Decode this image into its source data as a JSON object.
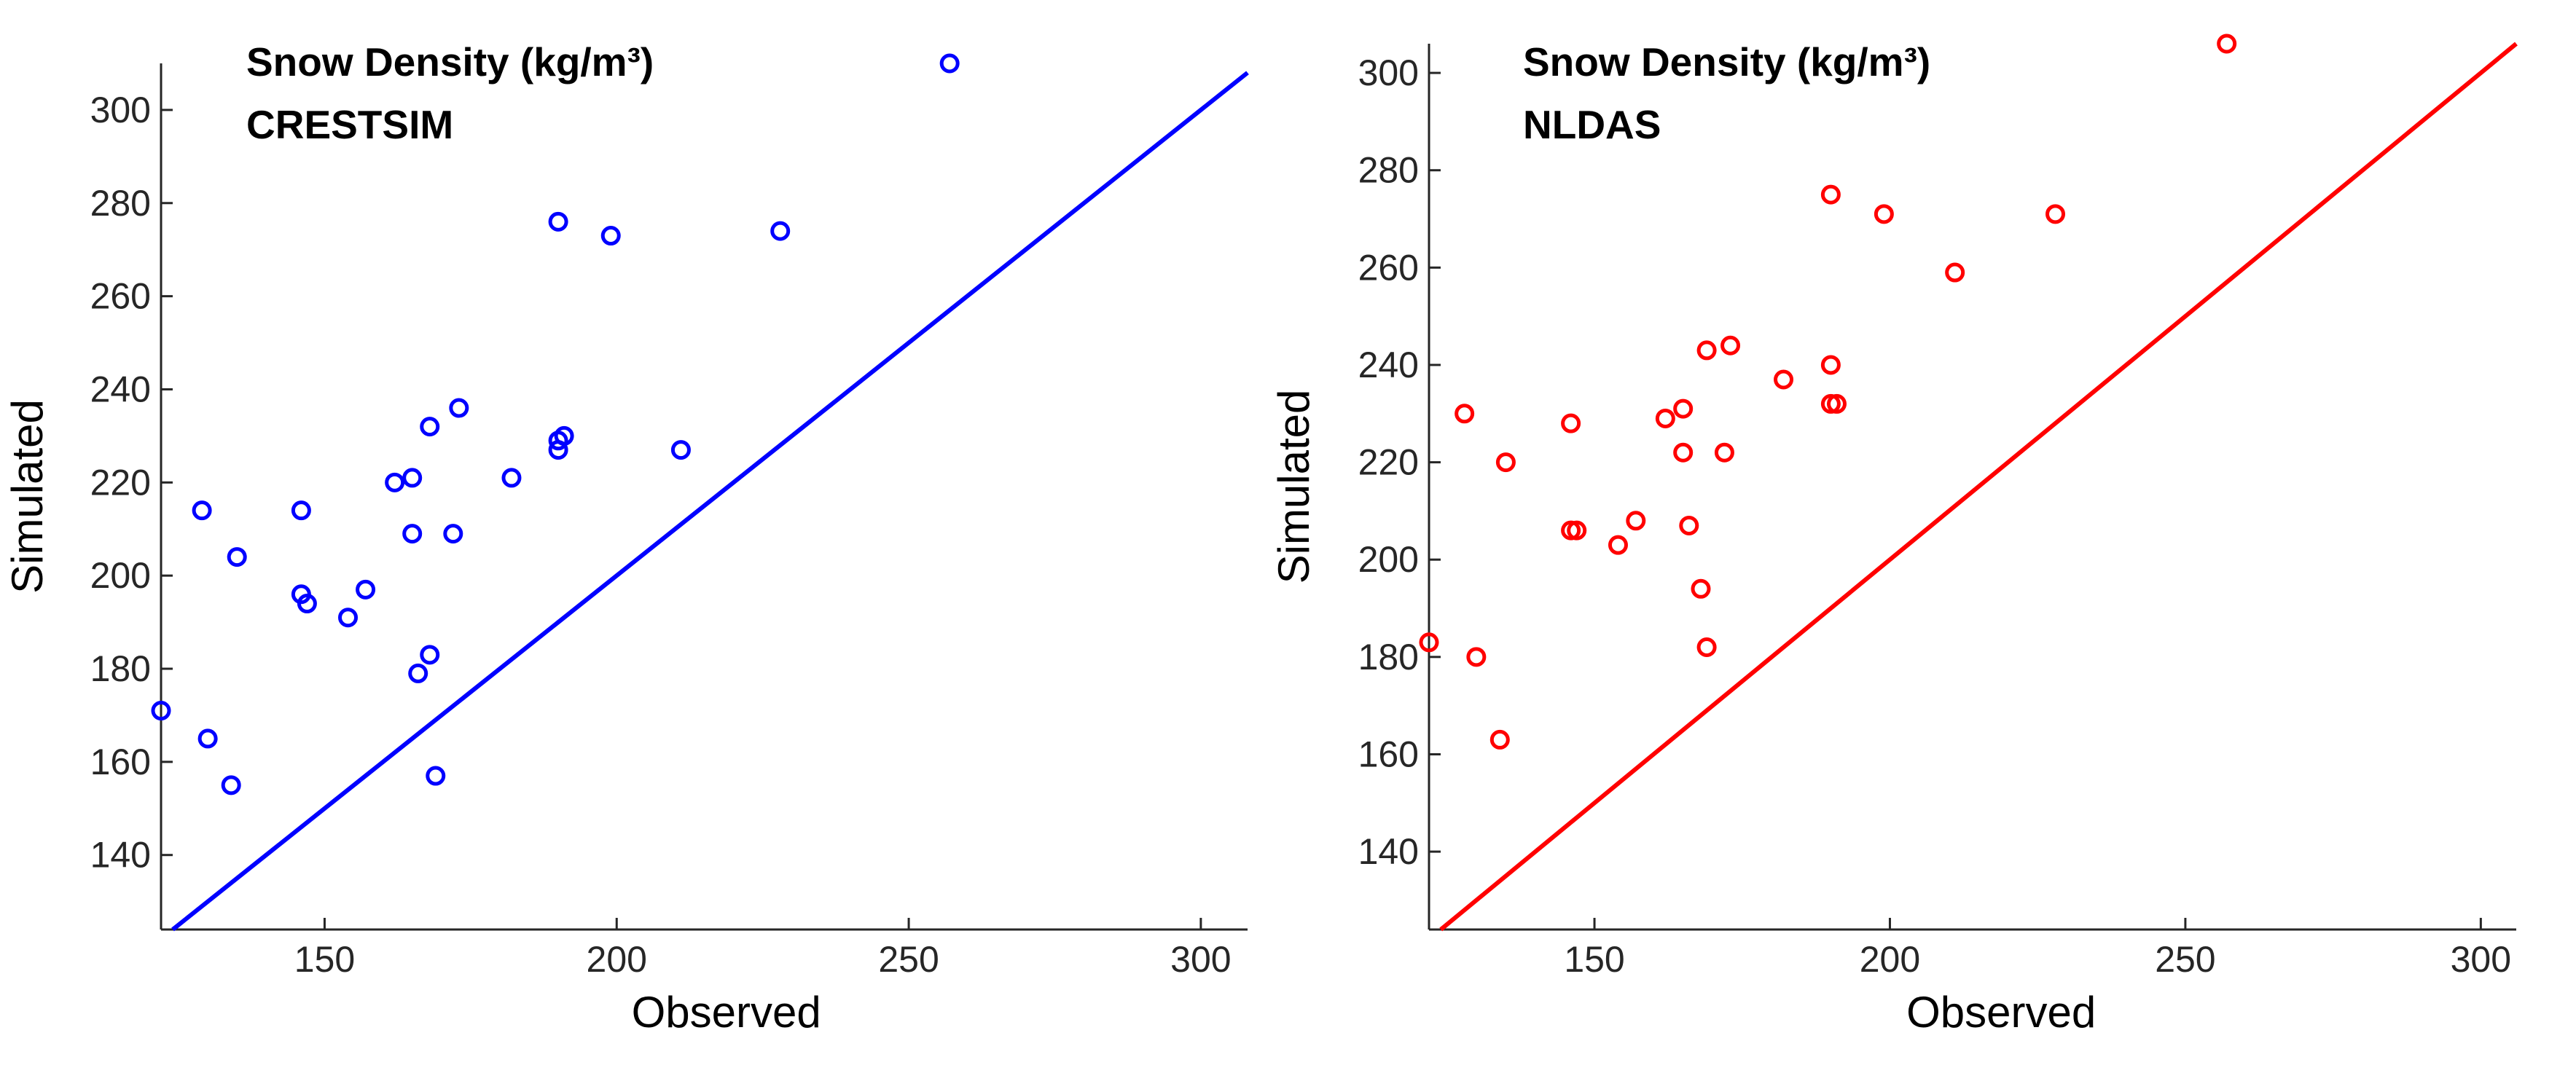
{
  "chart_data": [
    {
      "type": "scatter",
      "title": "Snow Density (kg/m³)",
      "subtitle": "CRESTSIM",
      "xlabel": "Observed",
      "ylabel": "Simulated",
      "xlim": [
        122,
        308
      ],
      "ylim": [
        124,
        310
      ],
      "xticks": [
        150,
        200,
        250,
        300
      ],
      "yticks": [
        140,
        160,
        180,
        200,
        220,
        240,
        260,
        280,
        300
      ],
      "color": "#0000ff",
      "reference_line": "1:1",
      "points": [
        {
          "x": 122,
          "y": 171
        },
        {
          "x": 129,
          "y": 214
        },
        {
          "x": 130,
          "y": 165
        },
        {
          "x": 134,
          "y": 155
        },
        {
          "x": 135,
          "y": 204
        },
        {
          "x": 146,
          "y": 196
        },
        {
          "x": 146,
          "y": 214
        },
        {
          "x": 147,
          "y": 194
        },
        {
          "x": 154,
          "y": 191
        },
        {
          "x": 157,
          "y": 197
        },
        {
          "x": 162,
          "y": 220
        },
        {
          "x": 165,
          "y": 221
        },
        {
          "x": 165,
          "y": 209
        },
        {
          "x": 166,
          "y": 179
        },
        {
          "x": 168,
          "y": 183
        },
        {
          "x": 168,
          "y": 232
        },
        {
          "x": 169,
          "y": 157
        },
        {
          "x": 172,
          "y": 209
        },
        {
          "x": 173,
          "y": 236
        },
        {
          "x": 182,
          "y": 221
        },
        {
          "x": 190,
          "y": 276
        },
        {
          "x": 190,
          "y": 229
        },
        {
          "x": 190,
          "y": 227
        },
        {
          "x": 191,
          "y": 230
        },
        {
          "x": 199,
          "y": 273
        },
        {
          "x": 211,
          "y": 227
        },
        {
          "x": 228,
          "y": 274
        },
        {
          "x": 257,
          "y": 310
        }
      ]
    },
    {
      "type": "scatter",
      "title": "Snow Density (kg/m³)",
      "subtitle": "NLDAS",
      "xlabel": "Observed",
      "ylabel": "Simulated",
      "xlim": [
        122,
        306
      ],
      "ylim": [
        124,
        306
      ],
      "xticks": [
        150,
        200,
        250,
        300
      ],
      "yticks": [
        140,
        160,
        180,
        200,
        220,
        240,
        260,
        280,
        300
      ],
      "color": "#ff0000",
      "reference_line": "1:1",
      "points": [
        {
          "x": 122,
          "y": 183
        },
        {
          "x": 128,
          "y": 230
        },
        {
          "x": 130,
          "y": 180
        },
        {
          "x": 134,
          "y": 163
        },
        {
          "x": 135,
          "y": 220
        },
        {
          "x": 146,
          "y": 228
        },
        {
          "x": 146,
          "y": 206
        },
        {
          "x": 147,
          "y": 206
        },
        {
          "x": 154,
          "y": 203
        },
        {
          "x": 157,
          "y": 208
        },
        {
          "x": 162,
          "y": 229
        },
        {
          "x": 165,
          "y": 231
        },
        {
          "x": 165,
          "y": 222
        },
        {
          "x": 166,
          "y": 207
        },
        {
          "x": 168,
          "y": 194
        },
        {
          "x": 169,
          "y": 243
        },
        {
          "x": 169,
          "y": 182
        },
        {
          "x": 172,
          "y": 222
        },
        {
          "x": 173,
          "y": 244
        },
        {
          "x": 182,
          "y": 237
        },
        {
          "x": 190,
          "y": 275
        },
        {
          "x": 190,
          "y": 240
        },
        {
          "x": 190,
          "y": 232
        },
        {
          "x": 191,
          "y": 232
        },
        {
          "x": 199,
          "y": 271
        },
        {
          "x": 211,
          "y": 259
        },
        {
          "x": 228,
          "y": 271
        },
        {
          "x": 257,
          "y": 306
        }
      ]
    }
  ]
}
